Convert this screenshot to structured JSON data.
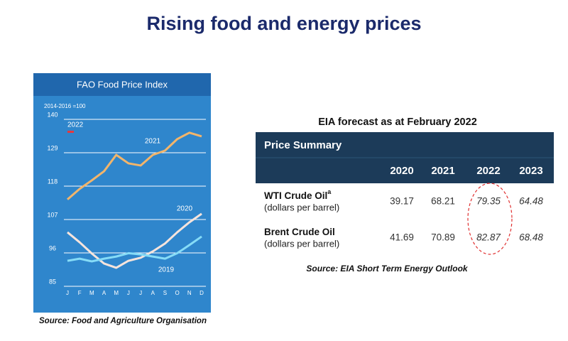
{
  "title": "Rising food and energy prices",
  "chart_data": {
    "type": "line",
    "title": "FAO Food Price Index",
    "subtitle": "2014-2016 =100",
    "categories": [
      "J",
      "F",
      "M",
      "A",
      "M",
      "J",
      "J",
      "A",
      "S",
      "O",
      "N",
      "D"
    ],
    "series": [
      {
        "name": "2022",
        "color": "#e8383d",
        "values": [
          135.9,
          null,
          null,
          null,
          null,
          null,
          null,
          null,
          null,
          null,
          null,
          null
        ]
      },
      {
        "name": "2021",
        "color": "#f2b56b",
        "values": [
          113.6,
          117.1,
          119.9,
          122.9,
          128.3,
          125.5,
          124.8,
          128.3,
          129.7,
          133.5,
          135.6,
          134.4
        ]
      },
      {
        "name": "2020",
        "color": "#f6e4dc",
        "values": [
          102.8,
          99.5,
          95.8,
          92.5,
          91.1,
          93.4,
          94.4,
          96.5,
          99.1,
          102.8,
          106.1,
          108.9
        ]
      },
      {
        "name": "2019",
        "color": "#86dcf7",
        "values": [
          93.4,
          94.1,
          93.2,
          94.1,
          94.8,
          95.9,
          95.5,
          94.8,
          94.1,
          95.9,
          98.6,
          101.4
        ]
      }
    ],
    "ylim": [
      85,
      140
    ],
    "yticks": [
      85,
      96,
      107,
      118,
      129,
      140
    ],
    "grid": true
  },
  "table": {
    "title": "EIA forecast as at February 2022",
    "header": "Price Summary",
    "columns": [
      "2020",
      "2021",
      "2022",
      "2023"
    ],
    "rows": [
      {
        "label": "WTI Crude Oil",
        "note": "a",
        "unit": "(dollars per barrel)",
        "values": [
          39.17,
          68.21,
          79.35,
          64.48
        ]
      },
      {
        "label": "Brent Crude Oil",
        "unit": "(dollars per barrel)",
        "values": [
          41.69,
          70.89,
          82.87,
          68.48
        ]
      }
    ]
  },
  "sources": [
    "Source: Food and Agriculture Organisation",
    "Source: EIA Short Term Energy Outlook"
  ]
}
